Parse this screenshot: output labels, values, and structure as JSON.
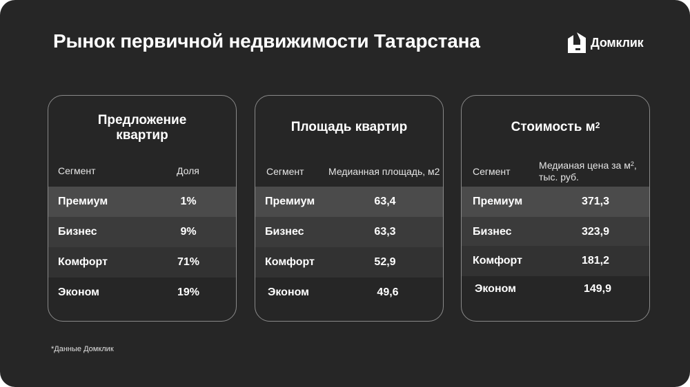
{
  "title": "Рынок первичной недвижимости Татарстана",
  "logo": {
    "text": "Домклик",
    "icon": "domclick-house-icon"
  },
  "cards": [
    {
      "title_line1": "Предложение",
      "title_line2": "квартир",
      "col_segment": "Сегмент",
      "col_value": "Доля",
      "rows": [
        {
          "segment": "Премиум",
          "value": "1%"
        },
        {
          "segment": "Бизнес",
          "value": "9%"
        },
        {
          "segment": "Комфорт",
          "value": "71%"
        },
        {
          "segment": "Эконом",
          "value": "19%"
        }
      ]
    },
    {
      "title_line1": "Площадь квартир",
      "col_segment": "Сегмент",
      "col_value": "Медианная площадь, м2",
      "rows": [
        {
          "segment": "Премиум",
          "value": "63,4"
        },
        {
          "segment": "Бизнес",
          "value": "63,3"
        },
        {
          "segment": "Комфорт",
          "value": "52,9"
        },
        {
          "segment": "Эконом",
          "value": "49,6"
        }
      ]
    },
    {
      "title_line1": "Стоимость м",
      "title_sup": "2",
      "col_segment": "Сегмент",
      "col_value_line1": "Медианая цена за м",
      "col_value_sup": "2",
      "col_value_line1_tail": ",",
      "col_value_line2": "тыс. руб.",
      "rows": [
        {
          "segment": "Премиум",
          "value": "371,3"
        },
        {
          "segment": "Бизнес",
          "value": "323,9"
        },
        {
          "segment": "Комфорт",
          "value": "181,2"
        },
        {
          "segment": "Эконом",
          "value": "149,9"
        }
      ]
    }
  ],
  "footnote": "*Данные Домклик"
}
